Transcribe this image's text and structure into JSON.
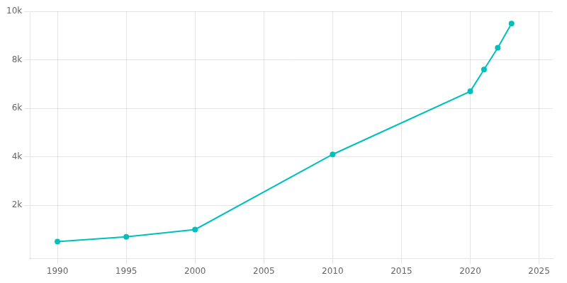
{
  "chart_data": {
    "type": "line",
    "x": [
      1990,
      1995,
      2000,
      2010,
      2020,
      2021,
      2022,
      2023
    ],
    "values": [
      500,
      700,
      1000,
      4100,
      6700,
      7600,
      8500,
      9500
    ],
    "color": "#00BFBF",
    "marker": "circle",
    "xlim": [
      1988,
      2026
    ],
    "ylim": [
      -200,
      10000
    ],
    "xticks": [
      1990,
      1995,
      2000,
      2005,
      2010,
      2015,
      2020,
      2025
    ],
    "yticks": [
      {
        "value": 2000,
        "label": "2k"
      },
      {
        "value": 4000,
        "label": "4k"
      },
      {
        "value": 6000,
        "label": "6k"
      },
      {
        "value": 8000,
        "label": "8k"
      },
      {
        "value": 10000,
        "label": "10k"
      }
    ],
    "grid": true
  }
}
